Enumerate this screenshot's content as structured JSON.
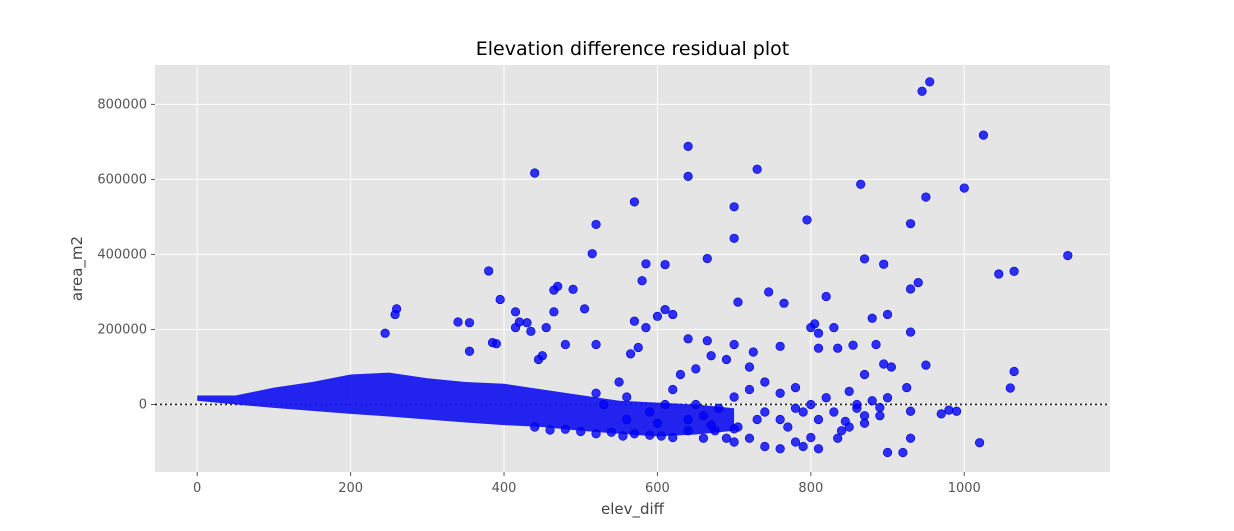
{
  "chart_data": {
    "type": "scatter",
    "title": "Elevation difference residual plot",
    "xlabel": "elev_diff",
    "ylabel": "area_m2",
    "xlim": [
      -55,
      1190
    ],
    "ylim": [
      -180000,
      905000
    ],
    "x_ticks": [
      0,
      200,
      400,
      600,
      800,
      1000
    ],
    "y_ticks": [
      0,
      200000,
      400000,
      600000,
      800000
    ],
    "x_tick_labels": [
      "0",
      "200",
      "400",
      "600",
      "800",
      "1000"
    ],
    "y_tick_labels": [
      "0",
      "200000",
      "400000",
      "600000",
      "800000"
    ],
    "grid": true,
    "reference_line": {
      "y": 0,
      "style": "dotted"
    },
    "colors": {
      "points": "#0000ff",
      "background": "#e5e5e5",
      "grid": "#ffffff"
    },
    "points": [
      [
        955,
        860000
      ],
      [
        945,
        835000
      ],
      [
        1025,
        718000
      ],
      [
        640,
        688000
      ],
      [
        440,
        617000
      ],
      [
        730,
        627000
      ],
      [
        640,
        608000
      ],
      [
        865,
        587000
      ],
      [
        1000,
        577000
      ],
      [
        570,
        540000
      ],
      [
        950,
        553000
      ],
      [
        700,
        527000
      ],
      [
        795,
        492000
      ],
      [
        520,
        480000
      ],
      [
        930,
        482000
      ],
      [
        700,
        443000
      ],
      [
        515,
        402000
      ],
      [
        1135,
        397000
      ],
      [
        665,
        389000
      ],
      [
        870,
        388000
      ],
      [
        585,
        375000
      ],
      [
        610,
        373000
      ],
      [
        895,
        374000
      ],
      [
        1065,
        355000
      ],
      [
        1045,
        348000
      ],
      [
        380,
        356000
      ],
      [
        580,
        330000
      ],
      [
        940,
        325000
      ],
      [
        930,
        308000
      ],
      [
        470,
        315000
      ],
      [
        465,
        305000
      ],
      [
        490,
        307000
      ],
      [
        745,
        300000
      ],
      [
        820,
        288000
      ],
      [
        395,
        280000
      ],
      [
        505,
        255000
      ],
      [
        600,
        235000
      ],
      [
        705,
        273000
      ],
      [
        765,
        270000
      ],
      [
        260,
        255000
      ],
      [
        258,
        240000
      ],
      [
        415,
        247000
      ],
      [
        465,
        247000
      ],
      [
        570,
        222000
      ],
      [
        585,
        205000
      ],
      [
        610,
        253000
      ],
      [
        620,
        240000
      ],
      [
        880,
        230000
      ],
      [
        900,
        240000
      ],
      [
        340,
        220000
      ],
      [
        355,
        218000
      ],
      [
        415,
        205000
      ],
      [
        420,
        220000
      ],
      [
        430,
        218000
      ],
      [
        455,
        205000
      ],
      [
        435,
        195000
      ],
      [
        245,
        190000
      ],
      [
        810,
        190000
      ],
      [
        930,
        193000
      ],
      [
        665,
        170000
      ],
      [
        800,
        205000
      ],
      [
        805,
        215000
      ],
      [
        830,
        205000
      ],
      [
        385,
        165000
      ],
      [
        390,
        162000
      ],
      [
        355,
        142000
      ],
      [
        445,
        120000
      ],
      [
        450,
        130000
      ],
      [
        480,
        160000
      ],
      [
        520,
        160000
      ],
      [
        565,
        135000
      ],
      [
        575,
        152000
      ],
      [
        640,
        175000
      ],
      [
        700,
        160000
      ],
      [
        725,
        140000
      ],
      [
        760,
        155000
      ],
      [
        810,
        150000
      ],
      [
        835,
        150000
      ],
      [
        855,
        158000
      ],
      [
        885,
        160000
      ],
      [
        895,
        108000
      ],
      [
        905,
        100000
      ],
      [
        950,
        105000
      ],
      [
        1065,
        88000
      ],
      [
        1060,
        44000
      ],
      [
        925,
        45000
      ],
      [
        1020,
        -102000
      ],
      [
        900,
        -128000
      ],
      [
        920,
        -128000
      ],
      [
        930,
        -90000
      ],
      [
        970,
        -25000
      ],
      [
        980,
        -15000
      ],
      [
        990,
        -18000
      ],
      [
        930,
        -18000
      ],
      [
        900,
        18000
      ],
      [
        890,
        -8000
      ],
      [
        870,
        -30000
      ],
      [
        860,
        -10000
      ],
      [
        845,
        -45000
      ],
      [
        840,
        -70000
      ],
      [
        835,
        -90000
      ],
      [
        810,
        -118000
      ],
      [
        800,
        -88000
      ],
      [
        790,
        -112000
      ],
      [
        780,
        -100000
      ],
      [
        760,
        -118000
      ],
      [
        740,
        -112000
      ],
      [
        720,
        -90000
      ],
      [
        705,
        -60000
      ],
      [
        700,
        -100000
      ],
      [
        690,
        -90000
      ],
      [
        675,
        -70000
      ],
      [
        660,
        -90000
      ],
      [
        640,
        -70000
      ],
      [
        620,
        -88000
      ],
      [
        605,
        -84000
      ],
      [
        590,
        -82000
      ],
      [
        570,
        -78000
      ],
      [
        555,
        -84000
      ],
      [
        540,
        -74000
      ],
      [
        520,
        -78000
      ],
      [
        500,
        -72000
      ],
      [
        480,
        -66000
      ],
      [
        460,
        -68000
      ],
      [
        440,
        -60000
      ],
      [
        620,
        40000
      ],
      [
        630,
        80000
      ],
      [
        650,
        95000
      ],
      [
        670,
        130000
      ],
      [
        690,
        120000
      ],
      [
        720,
        100000
      ],
      [
        740,
        60000
      ],
      [
        760,
        30000
      ],
      [
        780,
        45000
      ],
      [
        800,
        0
      ],
      [
        820,
        18000
      ],
      [
        850,
        35000
      ],
      [
        860,
        0
      ],
      [
        870,
        80000
      ],
      [
        880,
        10000
      ],
      [
        650,
        0
      ],
      [
        550,
        60000
      ],
      [
        560,
        20000
      ],
      [
        590,
        -20000
      ],
      [
        610,
        0
      ],
      [
        660,
        -30000
      ],
      [
        680,
        -10000
      ],
      [
        700,
        20000
      ],
      [
        720,
        40000
      ],
      [
        740,
        -20000
      ],
      [
        760,
        -40000
      ],
      [
        780,
        -10000
      ],
      [
        520,
        30000
      ],
      [
        530,
        0
      ],
      [
        560,
        -40000
      ],
      [
        600,
        -50000
      ],
      [
        640,
        -40000
      ],
      [
        670,
        -55000
      ],
      [
        700,
        -65000
      ],
      [
        730,
        -40000
      ],
      [
        770,
        -60000
      ],
      [
        790,
        -20000
      ],
      [
        810,
        -40000
      ],
      [
        830,
        -20000
      ],
      [
        850,
        -60000
      ],
      [
        870,
        -50000
      ],
      [
        890,
        -30000
      ]
    ]
  }
}
